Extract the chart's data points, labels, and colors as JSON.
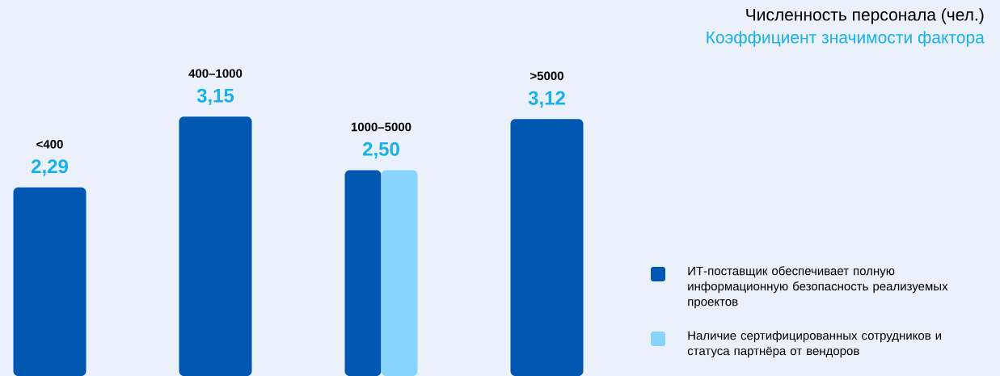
{
  "chart_data": {
    "type": "bar",
    "title": "Численность персонала (чел.)",
    "subtitle": "Коэффициент значимости фактора",
    "categories": [
      "<400",
      "400–1000",
      "1000–5000",
      ">5000"
    ],
    "series": [
      {
        "name": "ИТ-поставщик обеспечивает полную информационную безопасность реализуемых проектов",
        "color": "#0057b2",
        "values": [
          2.29,
          3.15,
          2.5,
          3.12
        ],
        "value_labels": [
          "2,29",
          "3,15",
          "2,50",
          "3,12"
        ]
      },
      {
        "name": "Наличие сертифицированных сотрудников и статуса партнёра от вендоров",
        "color": "#88d4fc",
        "values": [
          null,
          null,
          2.5,
          null
        ]
      }
    ],
    "legend": "bottom right"
  }
}
